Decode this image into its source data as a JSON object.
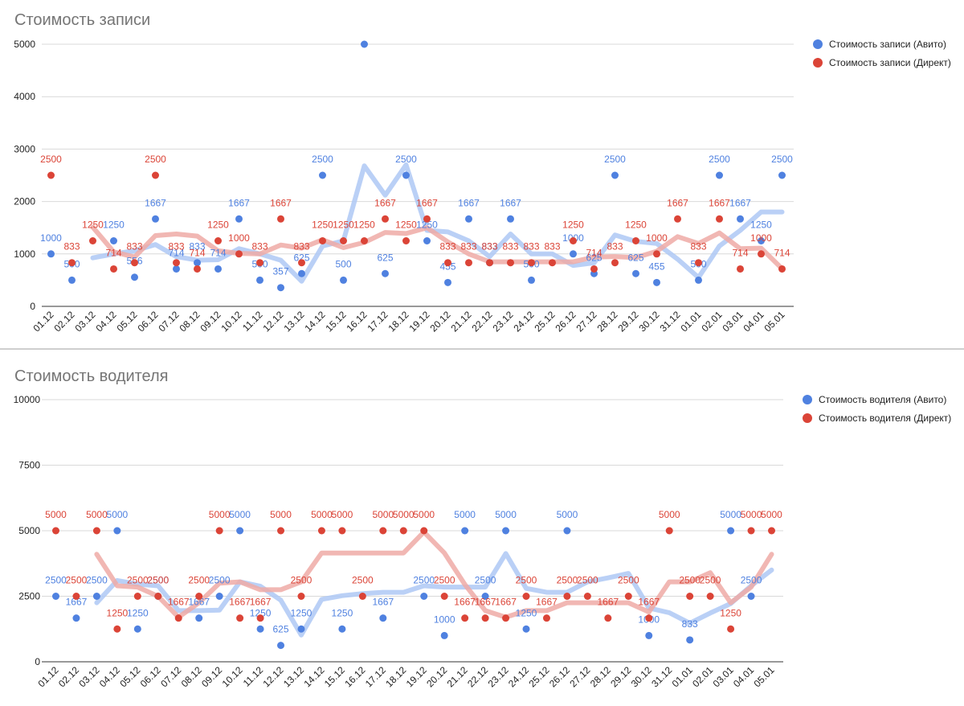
{
  "chart_data": [
    {
      "type": "scatter",
      "title": "Стоимость записи",
      "ylim": [
        0,
        5000
      ],
      "yticks": [
        "0",
        "1000",
        "2000",
        "3000",
        "4000",
        "5000"
      ],
      "categories": [
        "01.12",
        "02.12",
        "03.12",
        "04.12",
        "05.12",
        "06.12",
        "07.12",
        "08.12",
        "09.12",
        "10.12",
        "11.12",
        "12.12",
        "13.12",
        "14.12",
        "15.12",
        "16.12",
        "17.12",
        "18.12",
        "19.12",
        "20.12",
        "21.12",
        "22.12",
        "23.12",
        "24.12",
        "25.12",
        "26.12",
        "27.12",
        "28.12",
        "29.12",
        "30.12",
        "31.12",
        "01.01",
        "02.01",
        "03.01",
        "04.01",
        "05.01"
      ],
      "legend_position": "right",
      "grid": true,
      "series": [
        {
          "name": "Стоимость записи (Авито)",
          "color": "#4f81e0",
          "trend_color": "#aec8f5",
          "values": [
            1000,
            500,
            null,
            1250,
            556,
            1667,
            714,
            833,
            714,
            1667,
            500,
            357,
            625,
            2500,
            500,
            5000,
            625,
            2500,
            1250,
            455,
            1667,
            833,
            1667,
            500,
            null,
            1000,
            625,
            2500,
            625,
            455,
            null,
            500,
            2500,
            1667,
            1250,
            2500
          ],
          "labels": [
            "1000",
            "500",
            "",
            "1250",
            "556",
            "1667",
            "714",
            "833",
            "714",
            "1667",
            "500",
            "357",
            "625",
            "2500",
            "500",
            "",
            "625",
            "2500",
            "1250",
            "455",
            "1667",
            "833",
            "1667",
            "500",
            "",
            "1000",
            "625",
            "2500",
            "625",
            "455",
            "",
            "500",
            "2500",
            "1667",
            "1250",
            "2500"
          ],
          "trend": [
            null,
            null,
            925,
            1000,
            1060,
            1180,
            950,
            880,
            890,
            1100,
            1000,
            880,
            480,
            1150,
            1250,
            2680,
            2120,
            2700,
            1450,
            1420,
            1250,
            950,
            1380,
            1000,
            1000,
            780,
            830,
            1360,
            1240,
            1200,
            900,
            550,
            1150,
            1450,
            1800,
            1800
          ]
        },
        {
          "name": "Стоимость записи (Директ)",
          "color": "#db4437",
          "trend_color": "#efaaa6",
          "values": [
            2500,
            833,
            1250,
            714,
            833,
            2500,
            833,
            714,
            1250,
            1000,
            833,
            1667,
            833,
            1250,
            1250,
            1250,
            1667,
            1250,
            1667,
            833,
            833,
            833,
            833,
            833,
            833,
            1250,
            714,
            833,
            1250,
            1000,
            1667,
            833,
            1667,
            714,
            1000,
            714
          ],
          "labels": [
            "2500",
            "833",
            "1250",
            "714",
            "833",
            "2500",
            "833",
            "714",
            "1250",
            "1000",
            "833",
            "1667",
            "833",
            "1250",
            "1250",
            "1250",
            "1667",
            "1250",
            "1667",
            "833",
            "833",
            "833",
            "833",
            "833",
            "833",
            "1250",
            "714",
            "833",
            "1250",
            "1000",
            "1667",
            "833",
            "1667",
            "714",
            "1000",
            "714"
          ],
          "trend": [
            null,
            null,
            1510,
            1040,
            940,
            1350,
            1380,
            1340,
            1060,
            1010,
            1000,
            1170,
            1110,
            1270,
            1120,
            1220,
            1410,
            1390,
            1500,
            1230,
            1000,
            850,
            850,
            850,
            850,
            850,
            940,
            950,
            930,
            1050,
            1330,
            1200,
            1400,
            1100,
            1110,
            720
          ]
        }
      ]
    },
    {
      "type": "scatter",
      "title": "Стоимость водителя",
      "ylim": [
        0,
        10000
      ],
      "yticks": [
        "0",
        "2500",
        "5000",
        "7500",
        "10000"
      ],
      "categories": [
        "01.12",
        "02.12",
        "03.12",
        "04.12",
        "05.12",
        "06.12",
        "07.12",
        "08.12",
        "09.12",
        "10.12",
        "11.12",
        "12.12",
        "13.12",
        "14.12",
        "15.12",
        "16.12",
        "17.12",
        "18.12",
        "19.12",
        "20.12",
        "21.12",
        "22.12",
        "23.12",
        "24.12",
        "25.12",
        "26.12",
        "27.12",
        "28.12",
        "29.12",
        "30.12",
        "31.12",
        "01.01",
        "02.01",
        "03.01",
        "04.01",
        "05.01"
      ],
      "legend_position": "right",
      "grid": true,
      "series": [
        {
          "name": "Стоимость водителя (Авито)",
          "color": "#4f81e0",
          "trend_color": "#aec8f5",
          "values": [
            2500,
            1667,
            2500,
            5000,
            1250,
            2500,
            null,
            1667,
            2500,
            5000,
            1250,
            625,
            1250,
            null,
            1250,
            null,
            1667,
            null,
            2500,
            1000,
            5000,
            2500,
            5000,
            1250,
            null,
            5000,
            null,
            null,
            null,
            1000,
            null,
            833,
            null,
            5000,
            2500,
            null
          ],
          "labels": [
            "2500",
            "1667",
            "2500",
            "5000",
            "1250",
            "2500",
            "",
            "1667",
            "2500",
            "5000",
            "1250",
            "625",
            "1250",
            "",
            "1250",
            "",
            "1667",
            "",
            "2500",
            "1000",
            "5000",
            "2500",
            "5000",
            "1250",
            "",
            "5000",
            "",
            "",
            "",
            "1000",
            "",
            "833",
            "",
            "5000",
            "2500",
            ""
          ],
          "trend": [
            null,
            null,
            2250,
            3100,
            2960,
            2900,
            1950,
            1950,
            1970,
            3050,
            2880,
            2350,
            1020,
            2380,
            2520,
            2600,
            2650,
            2650,
            2900,
            2850,
            2850,
            2850,
            4130,
            2800,
            2650,
            2650,
            3050,
            3200,
            3370,
            2050,
            1870,
            1470,
            1860,
            2220,
            2900,
            3500
          ]
        },
        {
          "name": "Стоимость водителя (Директ)",
          "color": "#db4437",
          "trend_color": "#efaaa6",
          "values": [
            5000,
            2500,
            5000,
            1250,
            2500,
            2500,
            1667,
            2500,
            5000,
            1667,
            1667,
            5000,
            2500,
            5000,
            5000,
            2500,
            5000,
            5000,
            5000,
            2500,
            1667,
            1667,
            1667,
            2500,
            1667,
            2500,
            2500,
            1667,
            2500,
            1667,
            5000,
            2500,
            2500,
            1250,
            5000,
            5000
          ],
          "labels": [
            "5000",
            "2500",
            "5000",
            "1250",
            "2500",
            "2500",
            "1667",
            "2500",
            "5000",
            "1667",
            "1667",
            "5000",
            "2500",
            "5000",
            "5000",
            "2500",
            "5000",
            "5000",
            "5000",
            "2500",
            "1667",
            "1667",
            "1667",
            "2500",
            "1667",
            "2500",
            "2500",
            "1667",
            "2500",
            "1667",
            "5000",
            "2500",
            "2500",
            "1250",
            "5000",
            "5000"
          ],
          "trend": [
            null,
            null,
            4100,
            2900,
            2850,
            2500,
            1700,
            2250,
            3000,
            3050,
            2750,
            2750,
            3050,
            4150,
            4150,
            4150,
            4150,
            4150,
            4950,
            4150,
            2950,
            1950,
            1700,
            1950,
            1950,
            2250,
            2250,
            2250,
            2250,
            1900,
            3050,
            3050,
            3400,
            2250,
            2850,
            4100
          ]
        }
      ]
    }
  ]
}
